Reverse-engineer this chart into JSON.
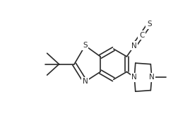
{
  "line_color": "#2a2a2a",
  "bg_color": "#ffffff",
  "lw": 1.2,
  "fig_width": 2.69,
  "fig_height": 1.78,
  "dpi": 100,
  "xlim": [
    0,
    269
  ],
  "ylim": [
    0,
    178
  ]
}
